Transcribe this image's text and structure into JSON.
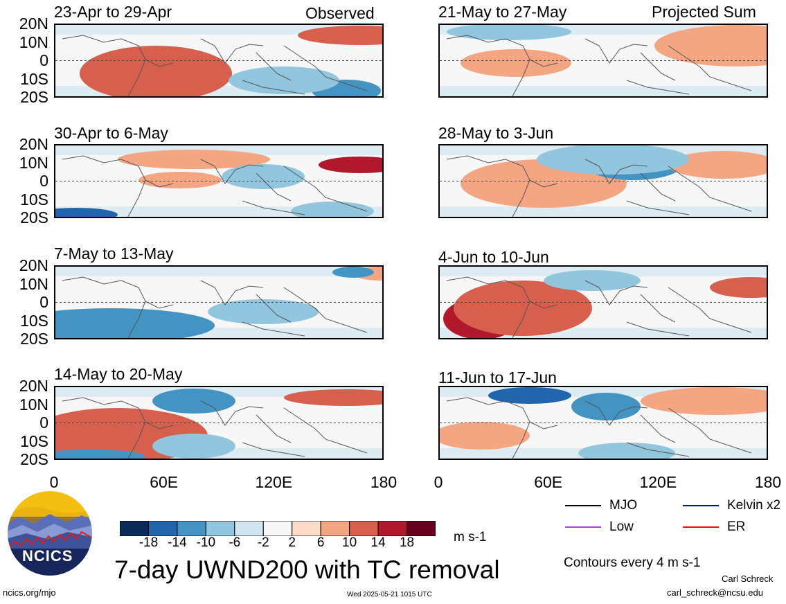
{
  "header": {
    "left_label": "Observed",
    "right_label": "Projected Sum"
  },
  "panels_left": [
    {
      "title": "23-Apr to 29-Apr"
    },
    {
      "title": "30-Apr to 6-May"
    },
    {
      "title": "7-May to 13-May"
    },
    {
      "title": "14-May to 20-May"
    }
  ],
  "panels_right": [
    {
      "title": "21-May to 27-May"
    },
    {
      "title": "28-May to 3-Jun"
    },
    {
      "title": "4-Jun to 10-Jun"
    },
    {
      "title": "11-Jun to 17-Jun"
    }
  ],
  "chart_data": {
    "type": "heatmap",
    "title": "7-day UWND200 with TC removal",
    "variable": "UWND200",
    "units": "m s-1",
    "y_tick_labels": [
      "20N",
      "10N",
      "0",
      "10S",
      "20S"
    ],
    "x_tick_labels": [
      "0",
      "60E",
      "120E",
      "180"
    ],
    "x_range": [
      0,
      180
    ],
    "y_range": [
      -20,
      20
    ],
    "colorbar": {
      "levels": [
        "-18",
        "-14",
        "-10",
        "-6",
        "-2",
        "2",
        "6",
        "10",
        "14",
        "18"
      ],
      "colors": [
        "#0a2a57",
        "#2166ac",
        "#4393c3",
        "#92c5de",
        "#d1e5f0",
        "#f7f7f7",
        "#fddbc7",
        "#f4a582",
        "#d6604d",
        "#b2182b",
        "#67001f"
      ]
    },
    "legend": [
      {
        "label": "MJO",
        "color": "#000000"
      },
      {
        "label": "Kelvin x2",
        "color": "#0000ff"
      },
      {
        "label": "Low",
        "color": "#a040e0"
      },
      {
        "label": "ER",
        "color": "#ff0000"
      }
    ],
    "contour_note": "Contours every 4 m s-1"
  },
  "branding": {
    "logo_text": "NCICS",
    "url": "ncics.org/mjo",
    "timestamp": "Wed 2025-05-21 1015 UTC",
    "author": "Carl Schreck",
    "email": "carl_schreck@ncsu.edu"
  }
}
